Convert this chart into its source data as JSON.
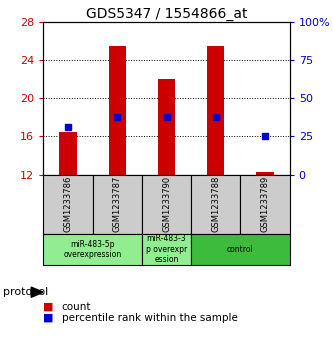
{
  "title": "GDS5347 / 1554866_at",
  "samples": [
    "GSM1233786",
    "GSM1233787",
    "GSM1233790",
    "GSM1233788",
    "GSM1233789"
  ],
  "count_values": [
    16.5,
    25.5,
    22.0,
    25.5,
    12.3
  ],
  "percentile_values": [
    17.0,
    18.0,
    18.0,
    18.0,
    16.0
  ],
  "ylim": [
    12,
    28
  ],
  "y2lim": [
    0,
    100
  ],
  "yticks": [
    12,
    16,
    20,
    24,
    28
  ],
  "y2ticks": [
    0,
    25,
    50,
    75,
    100
  ],
  "y2ticklabels": [
    "0",
    "25",
    "50",
    "75",
    "100%"
  ],
  "bar_color": "#cc0000",
  "square_color": "#0000cc",
  "title_fontsize": 10,
  "group_starts": [
    0,
    2,
    3
  ],
  "group_ends": [
    1,
    2,
    4
  ],
  "group_labels": [
    "miR-483-5p\noverexpression",
    "miR-483-3\np overexpr\nession",
    "control"
  ],
  "group_colors": [
    "#90ee90",
    "#90ee90",
    "#3dbb3d"
  ],
  "protocol_label": "protocol",
  "legend_count_label": "count",
  "legend_percentile_label": "percentile rank within the sample",
  "bar_width": 0.35,
  "sample_box_color": "#cccccc",
  "grid_yticks": [
    16,
    20,
    24
  ]
}
